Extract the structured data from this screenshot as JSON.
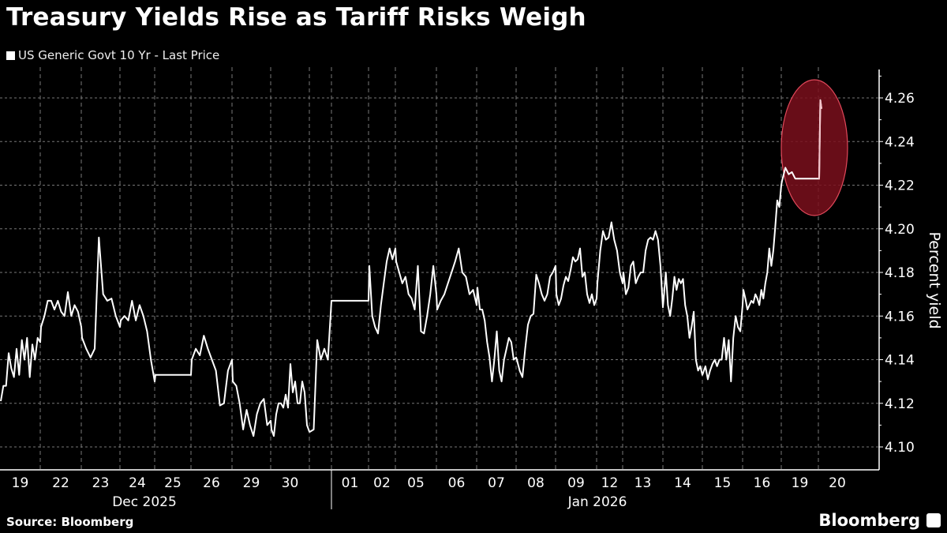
{
  "title": "Treasury Yields Rise as Tariff Risks Weigh",
  "source": "Source: Bloomberg",
  "logo": "Bloomberg",
  "colors": {
    "background": "#000000",
    "line": "#ffffff",
    "highlight_fill": "#7a0f1c",
    "highlight_stroke": "#e0485a"
  },
  "chart_data": {
    "type": "line",
    "title": "Treasury Yields Rise as Tariff Risks Weigh",
    "ylabel": "Percent yield",
    "ylim": [
      4.09,
      4.275
    ],
    "yticks": [
      "4.10",
      "4.12",
      "4.14",
      "4.16",
      "4.18",
      "4.20",
      "4.22",
      "4.24",
      "4.26"
    ],
    "grid": true,
    "legend_position": "top-left",
    "annotation": "red-ellipse-highlight-on-latest-jump",
    "months": [
      "Dec 2025",
      "Jan 2026"
    ],
    "series": [
      {
        "name": "US Generic Govt 10 Yr - Last Price",
        "days": [
          {
            "label": "19",
            "values": [
              4.121,
              4.128,
              4.128,
              4.143,
              4.136,
              4.132,
              4.145,
              4.133,
              4.149,
              4.14,
              4.15,
              4.132,
              4.147,
              4.14,
              4.15,
              4.148
            ]
          },
          {
            "label": "22",
            "values": [
              4.155,
              4.16,
              4.167,
              4.167,
              4.163,
              4.167,
              4.162,
              4.16,
              4.171,
              4.16,
              4.165,
              4.162,
              4.155
            ]
          },
          {
            "label": "23",
            "values": [
              4.15,
              4.145,
              4.141,
              4.145,
              4.196,
              4.17,
              4.167,
              4.168,
              4.16,
              4.155
            ]
          },
          {
            "label": "24",
            "values": [
              4.158,
              4.16,
              4.158,
              4.167,
              4.158,
              4.165,
              4.16,
              4.153,
              4.14,
              4.13
            ]
          },
          {
            "label": "25",
            "values": [
              4.133,
              4.133,
              4.133,
              4.133
            ]
          },
          {
            "label": "26",
            "values": [
              4.14,
              4.145,
              4.142,
              4.151,
              4.145,
              4.14,
              4.135,
              4.119,
              4.12,
              4.135,
              4.14
            ]
          },
          {
            "label": "29",
            "values": [
              4.13,
              4.128,
              4.12,
              4.108,
              4.117,
              4.11,
              4.105,
              4.115,
              4.12,
              4.122,
              4.11,
              4.112
            ]
          },
          {
            "label": "30",
            "values": [
              4.108,
              4.105,
              4.115,
              4.12,
              4.12,
              4.118,
              4.124,
              4.118,
              4.138,
              4.125,
              4.13,
              4.12,
              4.12,
              4.13,
              4.125,
              4.11,
              4.107
            ]
          },
          {
            "label": "",
            "values": [
              4.107,
              4.108,
              4.149,
              4.14,
              4.145,
              4.14,
              4.167
            ]
          },
          {
            "label": "01",
            "values": [
              4.167,
              4.167,
              4.167
            ]
          },
          {
            "label": "02",
            "values": [
              4.183,
              4.16,
              4.155,
              4.152,
              4.165,
              4.175,
              4.185,
              4.191,
              4.186,
              4.191
            ]
          },
          {
            "label": "05",
            "values": [
              4.185,
              4.18,
              4.175,
              4.178,
              4.17,
              4.168,
              4.163,
              4.183,
              4.153,
              4.152,
              4.16,
              4.17,
              4.183,
              4.17
            ]
          },
          {
            "label": "06",
            "values": [
              4.163,
              4.167,
              4.17,
              4.175,
              4.18,
              4.185,
              4.191,
              4.18,
              4.178,
              4.17,
              4.172,
              4.165
            ]
          },
          {
            "label": "07",
            "values": [
              4.173,
              4.163,
              4.163,
              4.158,
              4.148,
              4.141,
              4.13,
              4.14,
              4.153,
              4.135,
              4.13,
              4.14,
              4.145,
              4.15,
              4.148,
              4.14,
              4.141
            ]
          },
          {
            "label": "08",
            "values": [
              4.14,
              4.135,
              4.132,
              4.145,
              4.156,
              4.16,
              4.161,
              4.179,
              4.175,
              4.17,
              4.167,
              4.17,
              4.178,
              4.18,
              4.183
            ]
          },
          {
            "label": "09",
            "values": [
              4.17,
              4.165,
              4.168,
              4.174,
              4.178,
              4.176,
              4.181,
              4.187,
              4.185,
              4.186,
              4.191,
              4.178,
              4.18,
              4.17,
              4.166,
              4.17,
              4.165,
              4.168
            ]
          },
          {
            "label": "12",
            "values": [
              4.175,
              4.19,
              4.199,
              4.195,
              4.196,
              4.203,
              4.195,
              4.19,
              4.18,
              4.175
            ]
          },
          {
            "label": "13",
            "values": [
              4.18,
              4.17,
              4.173,
              4.183,
              4.185,
              4.175,
              4.178,
              4.18,
              4.18,
              4.19,
              4.195,
              4.196,
              4.195,
              4.199,
              4.195,
              4.183,
              4.164
            ]
          },
          {
            "label": "14",
            "values": [
              4.168,
              4.18,
              4.165,
              4.16,
              4.168,
              4.178,
              4.172,
              4.177,
              4.175,
              4.177,
              4.165,
              4.16,
              4.15,
              4.155,
              4.162,
              4.14,
              4.135,
              4.137,
              4.133
            ]
          },
          {
            "label": "15",
            "values": [
              4.134,
              4.137,
              4.131,
              4.135,
              4.138,
              4.14,
              4.137,
              4.14,
              4.14,
              4.15,
              4.14,
              4.149,
              4.13,
              4.15,
              4.16,
              4.155,
              4.153,
              4.165
            ]
          },
          {
            "label": "16",
            "values": [
              4.172,
              4.168,
              4.163,
              4.165,
              4.167,
              4.166,
              4.17,
              4.168,
              4.165,
              4.172,
              4.168,
              4.175,
              4.18,
              4.191,
              4.183,
              4.19,
              4.201,
              4.213,
              4.21,
              4.22
            ]
          },
          {
            "label": "19",
            "values": [
              4.222,
              4.228,
              4.225,
              4.226,
              4.223,
              4.223,
              4.223,
              4.223,
              4.223,
              4.223,
              4.223,
              4.223
            ]
          },
          {
            "label": "20",
            "values": [
              4.223,
              4.259,
              4.255
            ]
          }
        ]
      }
    ]
  }
}
